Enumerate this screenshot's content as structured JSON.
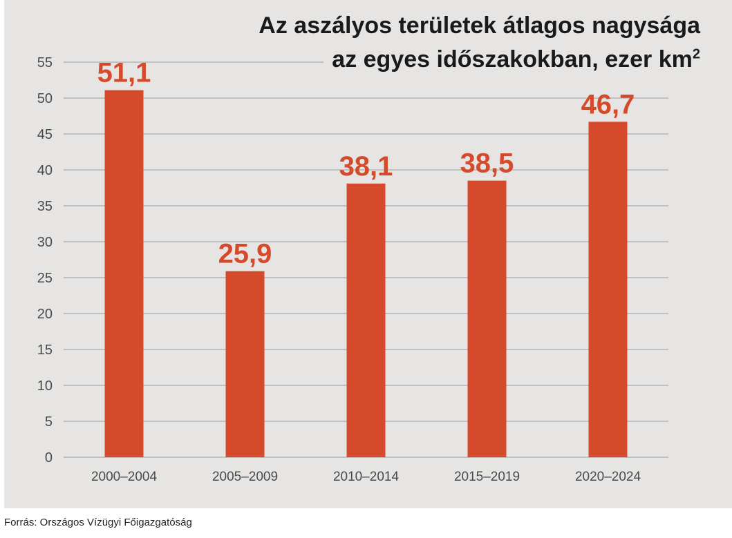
{
  "title": {
    "line1": "Az aszályos területek átlagos nagysága",
    "line2": "az egyes időszakokban, ezer km",
    "superscript": "2"
  },
  "source": "Forrás: Országos Vízügyi Főigazgatóság",
  "colors": {
    "bar": "#d54a2a",
    "value_label": "#d54a2a",
    "grid": "#9c9c9c",
    "tick_text": "#4a4a4a",
    "background": "#e6e5e4"
  },
  "chart_data": {
    "type": "bar",
    "title": "Az aszályos területek átlagos nagysága az egyes időszakokban, ezer km²",
    "categories": [
      "2000–2004",
      "2005–2009",
      "2010–2014",
      "2015–2019",
      "2020–2024"
    ],
    "values": [
      51.1,
      25.9,
      38.1,
      38.5,
      46.7
    ],
    "value_labels": [
      "51,1",
      "25,9",
      "38,1",
      "38,5",
      "46,7"
    ],
    "xlabel": "",
    "ylabel": "",
    "ylim": [
      0,
      55
    ],
    "yticks": [
      0,
      5,
      10,
      15,
      20,
      25,
      30,
      35,
      40,
      45,
      50,
      55
    ],
    "grid": true,
    "legend": "none"
  }
}
